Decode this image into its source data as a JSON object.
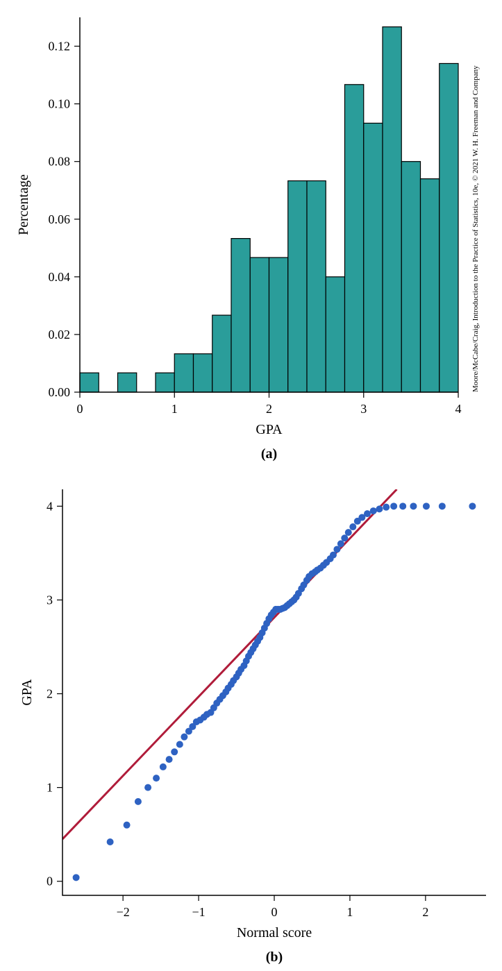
{
  "credit": "Moore/McCabe/Craig, Introduction to the Practice of Statistics, 10e, © 2021 W. H. Freeman and Company",
  "histogram": {
    "type": "histogram",
    "xlabel": "GPA",
    "ylabel": "Percentage",
    "panel_label": "(a)",
    "xlim": [
      0,
      4
    ],
    "ylim": [
      0,
      0.13
    ],
    "xticks": [
      0,
      1,
      2,
      3,
      4
    ],
    "yticks": [
      0.0,
      0.02,
      0.04,
      0.06,
      0.08,
      0.1,
      0.12
    ],
    "ytick_labels": [
      "0.00",
      "0.02",
      "0.04",
      "0.06",
      "0.08",
      "0.10",
      "0.12"
    ],
    "bin_width": 0.2,
    "bars": [
      {
        "x": 0.0,
        "h": 0.0067
      },
      {
        "x": 0.4,
        "h": 0.0067
      },
      {
        "x": 0.8,
        "h": 0.0067
      },
      {
        "x": 1.0,
        "h": 0.0133
      },
      {
        "x": 1.2,
        "h": 0.0133
      },
      {
        "x": 1.4,
        "h": 0.0267
      },
      {
        "x": 1.6,
        "h": 0.0533
      },
      {
        "x": 1.8,
        "h": 0.0467
      },
      {
        "x": 2.0,
        "h": 0.0467
      },
      {
        "x": 2.2,
        "h": 0.0733
      },
      {
        "x": 2.4,
        "h": 0.0733
      },
      {
        "x": 2.6,
        "h": 0.04
      },
      {
        "x": 2.8,
        "h": 0.1067
      },
      {
        "x": 3.0,
        "h": 0.0933
      },
      {
        "x": 3.2,
        "h": 0.1267
      },
      {
        "x": 3.4,
        "h": 0.08
      },
      {
        "x": 3.6,
        "h": 0.074
      },
      {
        "x": 3.8,
        "h": 0.114
      }
    ],
    "bar_fill": "#2a9d9a",
    "bar_stroke": "#000000",
    "bar_stroke_width": 1.2,
    "background_color": "#ffffff",
    "label_fontsize": 20,
    "tick_fontsize": 18
  },
  "qqplot": {
    "type": "scatter",
    "xlabel": "Normal score",
    "ylabel": "GPA",
    "panel_label": "(b)",
    "xlim": [
      -2.8,
      2.8
    ],
    "ylim": [
      -0.15,
      4.18
    ],
    "xticks": [
      -2,
      -1,
      0,
      1,
      2
    ],
    "yticks": [
      0,
      1,
      2,
      3,
      4
    ],
    "line_color": "#b01c3a",
    "line_width": 3,
    "point_color": "#2e62c2",
    "point_radius": 5,
    "line": {
      "x1": -2.8,
      "y1": 0.45,
      "x2": 1.62,
      "y2": 4.18
    },
    "points": [
      [
        -2.62,
        0.04
      ],
      [
        -2.17,
        0.42
      ],
      [
        -1.95,
        0.6
      ],
      [
        -1.8,
        0.85
      ],
      [
        -1.67,
        1.0
      ],
      [
        -1.56,
        1.1
      ],
      [
        -1.47,
        1.22
      ],
      [
        -1.39,
        1.3
      ],
      [
        -1.32,
        1.38
      ],
      [
        -1.25,
        1.46
      ],
      [
        -1.19,
        1.54
      ],
      [
        -1.13,
        1.6
      ],
      [
        -1.08,
        1.65
      ],
      [
        -1.03,
        1.7
      ],
      [
        -0.98,
        1.72
      ],
      [
        -0.93,
        1.75
      ],
      [
        -0.89,
        1.78
      ],
      [
        -0.84,
        1.8
      ],
      [
        -0.8,
        1.85
      ],
      [
        -0.76,
        1.9
      ],
      [
        -0.72,
        1.94
      ],
      [
        -0.68,
        1.98
      ],
      [
        -0.64,
        2.02
      ],
      [
        -0.61,
        2.06
      ],
      [
        -0.57,
        2.1
      ],
      [
        -0.54,
        2.14
      ],
      [
        -0.5,
        2.18
      ],
      [
        -0.47,
        2.22
      ],
      [
        -0.44,
        2.26
      ],
      [
        -0.4,
        2.3
      ],
      [
        -0.37,
        2.35
      ],
      [
        -0.34,
        2.4
      ],
      [
        -0.31,
        2.44
      ],
      [
        -0.28,
        2.48
      ],
      [
        -0.25,
        2.52
      ],
      [
        -0.22,
        2.56
      ],
      [
        -0.19,
        2.6
      ],
      [
        -0.16,
        2.65
      ],
      [
        -0.13,
        2.7
      ],
      [
        -0.1,
        2.75
      ],
      [
        -0.07,
        2.8
      ],
      [
        -0.04,
        2.84
      ],
      [
        -0.01,
        2.87
      ],
      [
        0.02,
        2.9
      ],
      [
        0.05,
        2.9
      ],
      [
        0.08,
        2.9
      ],
      [
        0.11,
        2.91
      ],
      [
        0.14,
        2.92
      ],
      [
        0.17,
        2.94
      ],
      [
        0.2,
        2.96
      ],
      [
        0.23,
        2.98
      ],
      [
        0.26,
        3.0
      ],
      [
        0.29,
        3.03
      ],
      [
        0.32,
        3.07
      ],
      [
        0.36,
        3.12
      ],
      [
        0.39,
        3.16
      ],
      [
        0.43,
        3.21
      ],
      [
        0.46,
        3.25
      ],
      [
        0.5,
        3.28
      ],
      [
        0.54,
        3.3
      ],
      [
        0.57,
        3.32
      ],
      [
        0.61,
        3.34
      ],
      [
        0.65,
        3.37
      ],
      [
        0.69,
        3.4
      ],
      [
        0.74,
        3.44
      ],
      [
        0.78,
        3.48
      ],
      [
        0.83,
        3.54
      ],
      [
        0.88,
        3.6
      ],
      [
        0.93,
        3.66
      ],
      [
        0.98,
        3.72
      ],
      [
        1.04,
        3.78
      ],
      [
        1.1,
        3.84
      ],
      [
        1.16,
        3.88
      ],
      [
        1.23,
        3.92
      ],
      [
        1.31,
        3.95
      ],
      [
        1.39,
        3.97
      ],
      [
        1.48,
        3.99
      ],
      [
        1.58,
        4.0
      ],
      [
        1.7,
        4.0
      ],
      [
        1.84,
        4.0
      ],
      [
        2.01,
        4.0
      ],
      [
        2.22,
        4.0
      ],
      [
        2.62,
        4.0
      ]
    ],
    "background_color": "#ffffff",
    "label_fontsize": 20,
    "tick_fontsize": 18
  }
}
